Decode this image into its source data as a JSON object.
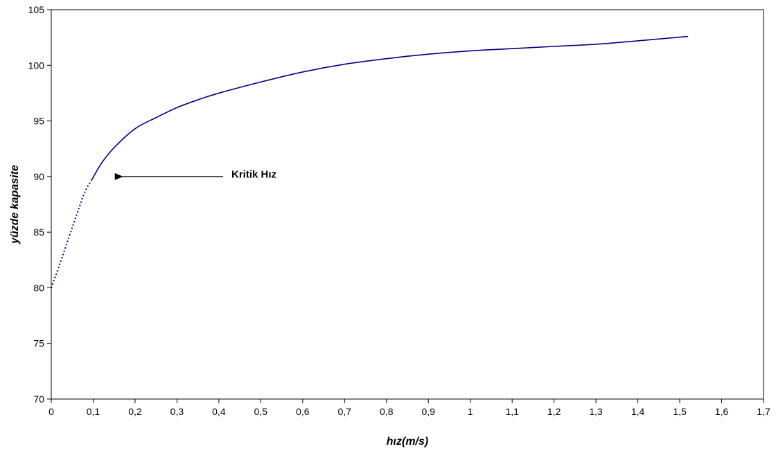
{
  "chart_data": {
    "type": "line",
    "xlabel": "hız(m/s)",
    "ylabel": "yüzde kapasite",
    "xlim": [
      0,
      1.7
    ],
    "ylim": [
      70,
      105
    ],
    "xticks": [
      0,
      0.1,
      0.2,
      0.3,
      0.4,
      0.5,
      0.6,
      0.7,
      0.8,
      0.9,
      1,
      1.1,
      1.2,
      1.3,
      1.4,
      1.5,
      1.6,
      1.7
    ],
    "xtick_labels": [
      "0",
      "0,1",
      "0,2",
      "0,3",
      "0,4",
      "0,5",
      "0,6",
      "0,7",
      "0,8",
      "0,9",
      "1",
      "1,1",
      "1,2",
      "1,3",
      "1,4",
      "1,5",
      "1,6",
      "1,7"
    ],
    "yticks": [
      70,
      75,
      80,
      85,
      90,
      95,
      100,
      105
    ],
    "ytick_labels": [
      "70",
      "75",
      "80",
      "85",
      "90",
      "95",
      "100",
      "105"
    ],
    "grid": false,
    "line_color": "#000080",
    "series": [
      {
        "style": "dotted",
        "x": [
          0,
          0.02,
          0.04,
          0.06,
          0.08,
          0.095
        ],
        "y": [
          80,
          82.1,
          84.3,
          86.5,
          88.6,
          89.6
        ]
      },
      {
        "style": "solid",
        "x": [
          0.095,
          0.12,
          0.15,
          0.2,
          0.25,
          0.3,
          0.35,
          0.4,
          0.5,
          0.6,
          0.7,
          0.8,
          0.9,
          1.0,
          1.1,
          1.2,
          1.3,
          1.4,
          1.52
        ],
        "y": [
          89.6,
          91.2,
          92.6,
          94.3,
          95.3,
          96.2,
          96.9,
          97.5,
          98.5,
          99.4,
          100.1,
          100.6,
          101.0,
          101.3,
          101.5,
          101.7,
          101.9,
          102.2,
          102.6
        ]
      }
    ],
    "annotations": [
      {
        "text": "Kritik Hız",
        "x": 0.43,
        "y": 90.2,
        "arrow_to": [
          0.15,
          90.0
        ],
        "arrow_from": [
          0.41,
          90.0
        ]
      }
    ]
  }
}
